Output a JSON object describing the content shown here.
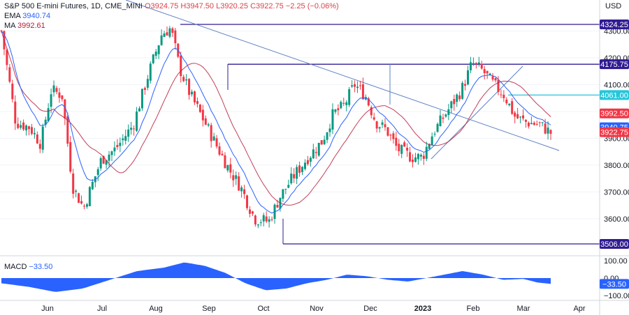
{
  "header": {
    "symbol": "S&P 500 E-mini Futures, 1D, CME_MINI",
    "open": "O3924.75",
    "high": "H3947.50",
    "low": "L3920.25",
    "close": "C3922.75",
    "change": "−2.25 (−0.06%)",
    "ema_label": "EMA",
    "ema_value": "3940.74",
    "ma_label": "MA",
    "ma_value": "3992.61",
    "currency": "USD"
  },
  "macd_panel": {
    "label": "MACD",
    "value": "−33.50"
  },
  "colors": {
    "up": "#089981",
    "down": "#f23645",
    "ema": "#2962ff",
    "ma": "#b71c3c",
    "macd_fill": "#2962ff",
    "level_line": "#311b92",
    "trend_line": "#5b7fc4",
    "level_4061": "#26c6da"
  },
  "chart_data": {
    "type": "candlestick",
    "title": "S&P 500 E-mini Futures, 1D, CME_MINI",
    "x_ticks": [
      "Jun",
      "Jul",
      "Aug",
      "Sep",
      "Oct",
      "Nov",
      "Dec",
      "2023",
      "Feb",
      "Mar",
      "Apr"
    ],
    "y_ticks": [
      3600,
      3700,
      3800,
      3900,
      4000,
      4100,
      4200,
      4300
    ],
    "ylim": [
      3490,
      4350
    ],
    "price_levels": [
      {
        "value": 4324.25,
        "label": "4324.25"
      },
      {
        "value": 4175.75,
        "label": "4175.75"
      },
      {
        "value": 4061.0,
        "label": "4061.00"
      },
      {
        "value": 3506.0,
        "label": "3506.00"
      }
    ],
    "price_tags": [
      {
        "value": 3992.5,
        "label": "3992.50",
        "color": "#f23645"
      },
      {
        "value": 3940.75,
        "label": "3940.75",
        "color": "#2962ff"
      },
      {
        "value": 3922.75,
        "label": "3922.75",
        "color": "#f23645"
      }
    ],
    "key_points": [
      {
        "date": "May 2022",
        "close": 4300
      },
      {
        "date": "Jun 2022",
        "close": 3900
      },
      {
        "date": "Jun 2022",
        "close": 3640
      },
      {
        "date": "Jul 2022",
        "close": 3860
      },
      {
        "date": "Aug 2022",
        "close": 4320
      },
      {
        "date": "Sep 2022",
        "close": 3900
      },
      {
        "date": "Oct 2022",
        "close": 3590
      },
      {
        "date": "Nov 2022",
        "close": 3990
      },
      {
        "date": "Dec 2022",
        "close": 4100
      },
      {
        "date": "Dec 2022",
        "close": 3820
      },
      {
        "date": "Feb 2023",
        "close": 4200
      },
      {
        "date": "Mar 2023",
        "close": 3922.75
      }
    ],
    "macd": {
      "y_ticks": [
        100.0,
        0.0,
        -100.0
      ],
      "y_tick_labels": [
        "100.00",
        "0.00",
        "−100.00"
      ],
      "last_value": -33.5,
      "last_label": "−33.50"
    }
  }
}
